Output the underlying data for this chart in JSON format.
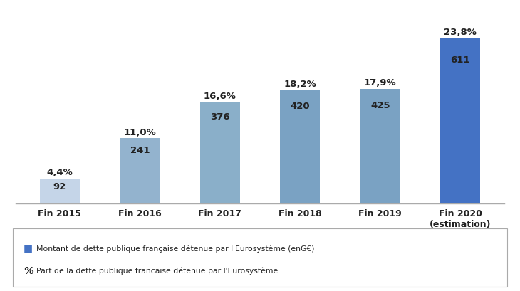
{
  "categories": [
    "Fin 2015",
    "Fin 2016",
    "Fin 2017",
    "Fin 2018",
    "Fin 2019",
    "Fin 2020\n(estimation)"
  ],
  "values": [
    92,
    241,
    376,
    420,
    425,
    611
  ],
  "percentages": [
    "4,4%",
    "11,0%",
    "16,6%",
    "18,2%",
    "17,9%",
    "23,8%"
  ],
  "bar_labels": [
    "92",
    "241",
    "376",
    "420",
    "425",
    "611"
  ],
  "bar_colors": [
    "#c5d5e8",
    "#93b3ce",
    "#8aafc9",
    "#7aa2c3",
    "#7aa2c3",
    "#4472c4"
  ],
  "ylim": [
    0,
    680
  ],
  "legend_square_color": "#4472c4",
  "legend_text1": "Montant de dette publique française détenue par l'Eurosystème (enG€)",
  "legend_text2": "Part de la dette publique francaise détenue par l'Eurosystème",
  "background_color": "#ffffff",
  "bar_width": 0.5
}
